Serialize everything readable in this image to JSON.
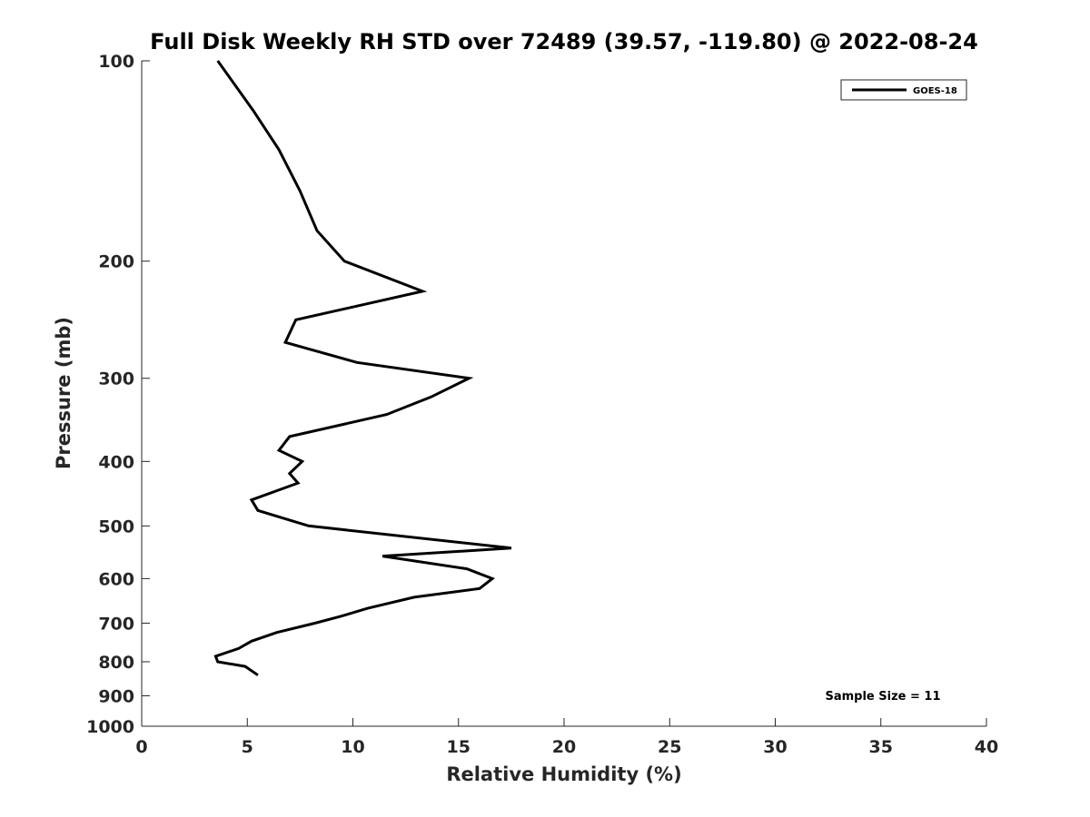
{
  "chart_data": {
    "type": "line",
    "title": "Full Disk Weekly RH STD over 72489 (39.57, -119.80) @ 2022-08-24",
    "xlabel": "Relative Humidity (%)",
    "ylabel": "Pressure (mb)",
    "xlim": [
      0,
      40
    ],
    "ylim": [
      100,
      1000
    ],
    "y_scale": "log",
    "y_reversed": true,
    "xticks": [
      0,
      5,
      10,
      15,
      20,
      25,
      30,
      35,
      40
    ],
    "yticks": [
      100,
      200,
      300,
      400,
      500,
      600,
      700,
      800,
      900,
      1000
    ],
    "grid": false,
    "legend_position": "top-right",
    "annotation": "Sample Size = 11",
    "series": [
      {
        "name": "GOES-18",
        "color": "#000000",
        "x": [
          3.6,
          5.3,
          6.5,
          7.5,
          8.3,
          9.6,
          13.3,
          7.3,
          6.8,
          10.2,
          15.5,
          13.7,
          11.6,
          7.0,
          6.5,
          7.6,
          7.0,
          7.4,
          5.2,
          5.5,
          7.9,
          17.5,
          11.4,
          15.4,
          16.6,
          16.0,
          12.9,
          10.7,
          9.4,
          8.2,
          6.4,
          5.2,
          4.6,
          3.5,
          3.6,
          4.9,
          5.5
        ],
        "y": [
          100,
          119,
          136,
          157,
          180,
          200,
          222,
          245,
          265,
          284,
          300,
          320,
          340,
          367,
          385,
          400,
          417,
          431,
          457,
          474,
          500,
          540,
          555,
          580,
          600,
          621,
          640,
          665,
          684,
          700,
          723,
          745,
          764,
          785,
          800,
          813,
          838
        ]
      }
    ]
  }
}
